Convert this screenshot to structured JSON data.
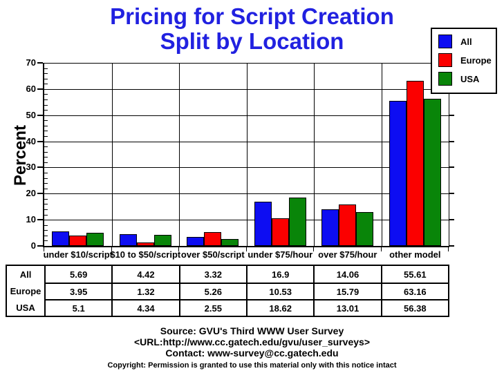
{
  "title": {
    "line1": "Pricing for Script Creation",
    "line2": "Split by Location",
    "color": "#2121e0"
  },
  "chart_data": {
    "type": "bar",
    "title": "Pricing for Script Creation Split by Location",
    "xlabel": "",
    "ylabel": "Percent",
    "ylim": [
      0,
      70
    ],
    "ytick_step": 10,
    "minor_tick_step": 2,
    "grid": true,
    "legend_position": "top-right",
    "categories": [
      "under $10/script",
      "$10 to $50/script",
      "over $50/script",
      "under $75/hour",
      "over $75/hour",
      "other model"
    ],
    "series": [
      {
        "name": "All",
        "color": "#0d0df2",
        "values": [
          5.69,
          4.42,
          3.32,
          16.9,
          14.06,
          55.61
        ]
      },
      {
        "name": "Europe",
        "color": "#fb0000",
        "values": [
          3.95,
          1.32,
          5.26,
          10.53,
          15.79,
          63.16
        ]
      },
      {
        "name": "USA",
        "color": "#098509",
        "values": [
          5.1,
          4.34,
          2.55,
          18.62,
          13.01,
          56.38
        ]
      }
    ]
  },
  "table": {
    "rows": [
      {
        "label": "All",
        "values": [
          "5.69",
          "4.42",
          "3.32",
          "16.9",
          "14.06",
          "55.61"
        ]
      },
      {
        "label": "Europe",
        "values": [
          "3.95",
          "1.32",
          "5.26",
          "10.53",
          "15.79",
          "63.16"
        ]
      },
      {
        "label": "USA",
        "values": [
          "5.1",
          "4.34",
          "2.55",
          "18.62",
          "13.01",
          "56.38"
        ]
      }
    ]
  },
  "footer": {
    "source": "Source: GVU's Third WWW User Survey",
    "url": "<URL:http://www.cc.gatech.edu/gvu/user_surveys>",
    "contact": "Contact: www-survey@cc.gatech.edu",
    "copyright": "Copyright: Permission is granted to use this material only with this notice intact"
  }
}
